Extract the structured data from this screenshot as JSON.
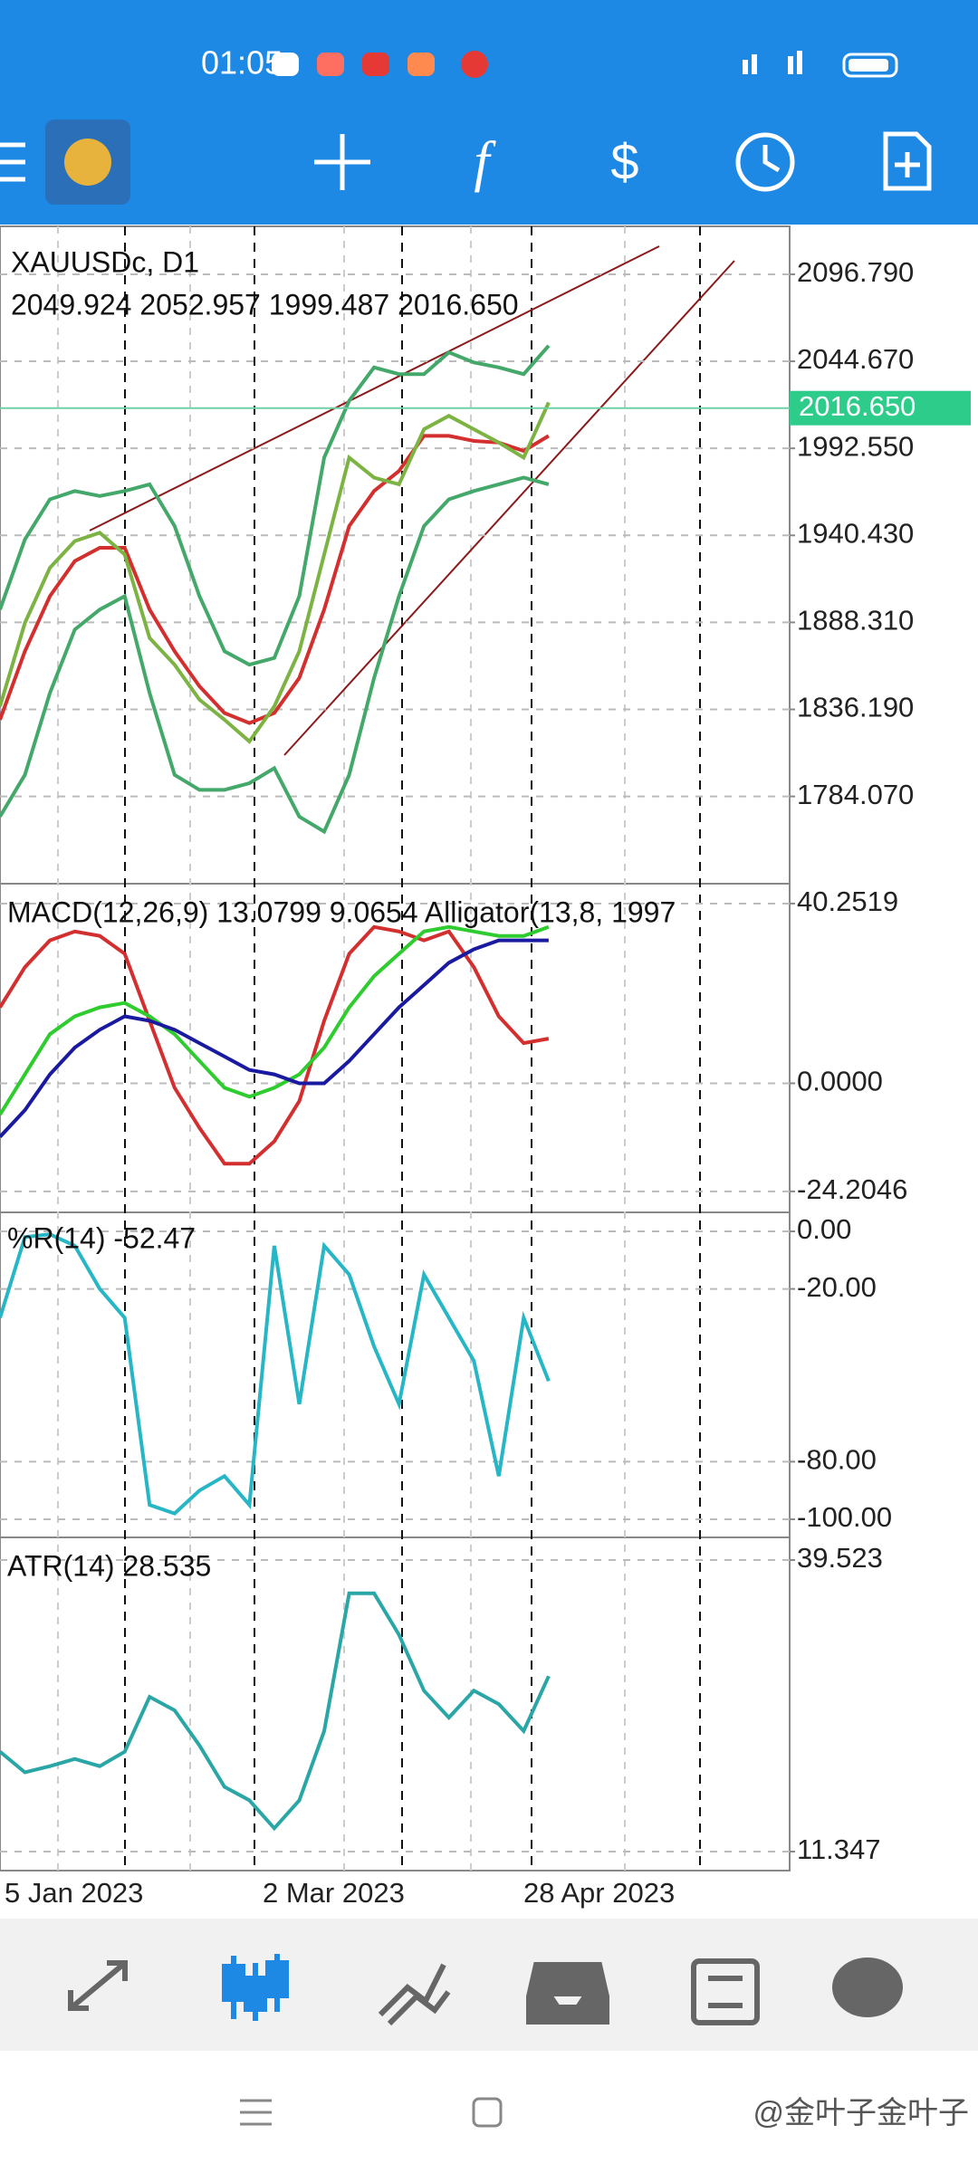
{
  "status_bar": {
    "time": "01:05"
  },
  "chart_data": [
    {
      "type": "line",
      "title": "XAUUSDc, D1",
      "subtitle": "2049.924 2052.957 1999.487 2016.650",
      "current_price": {
        "value": 2016.65,
        "label": "2016.650"
      },
      "ylim": [
        1731.8,
        2125.5
      ],
      "yticks": [
        {
          "value": 2096.79,
          "label": "2096.790"
        },
        {
          "value": 2044.67,
          "label": "2044.670"
        },
        {
          "value": 1992.55,
          "label": "1992.550"
        },
        {
          "value": 1940.43,
          "label": "1940.430"
        },
        {
          "value": 1888.31,
          "label": "1888.310"
        },
        {
          "value": 1836.19,
          "label": "1836.190"
        },
        {
          "value": 1784.07,
          "label": "1784.070"
        }
      ],
      "series": [
        {
          "color": "#43a86a",
          "values": [
            1896,
            1938,
            1962,
            1967,
            1964,
            1967,
            1971,
            1946,
            1904,
            1871,
            1863,
            1867,
            1904,
            1987,
            2021,
            2041,
            2037,
            2037,
            2050,
            2044,
            2041,
            2037,
            2054
          ]
        },
        {
          "color": "#43a86a",
          "values": [
            1772,
            1797,
            1846,
            1884,
            1896,
            1904,
            1846,
            1797,
            1788,
            1788,
            1792,
            1801,
            1772,
            1763,
            1797,
            1855,
            1904,
            1946,
            1962,
            1967,
            1971,
            1975,
            1971
          ]
        },
        {
          "color": "#d32f2f",
          "values": [
            1830,
            1871,
            1904,
            1925,
            1933,
            1933,
            1896,
            1871,
            1850,
            1834,
            1828,
            1834,
            1855,
            1896,
            1946,
            1967,
            1979,
            2000,
            2000,
            1997,
            1996,
            1991,
            2000
          ]
        },
        {
          "color": "#7cb342",
          "values": [
            1838,
            1888,
            1921,
            1937,
            1942,
            1929,
            1879,
            1863,
            1842,
            1830,
            1817,
            1838,
            1871,
            1929,
            1987,
            1975,
            1971,
            2004,
            2012,
            2004,
            1996,
            1987,
            2020
          ]
        }
      ]
    },
    {
      "type": "line",
      "title": "MACD(12,26,9) 13.0799 9.0654 Alligator(13,8, 1997",
      "ylim": [
        -28.9,
        44.7
      ],
      "yticks": [
        40.2519,
        {
          "value": 0,
          "label": "0.0000"
        },
        -24.2046
      ],
      "series": [
        {
          "color": "#d32f2f",
          "values": [
            17,
            26,
            32,
            34,
            33,
            29,
            14,
            -1,
            -10,
            -18,
            -18,
            -13,
            -4,
            14,
            29,
            35,
            34,
            32,
            34,
            26,
            15,
            9,
            10
          ]
        },
        {
          "color": "#2ecc2e",
          "values": [
            -7,
            2,
            11,
            15,
            17,
            18,
            15,
            11,
            5,
            -1,
            -3,
            -1,
            2,
            8,
            17,
            24,
            29,
            34,
            35,
            34,
            33,
            33,
            35
          ]
        },
        {
          "color": "#1a1aa0",
          "values": [
            -12,
            -6,
            2,
            8,
            12,
            15,
            14,
            12,
            9,
            6,
            3,
            2,
            0,
            0,
            5,
            11,
            17,
            22,
            27,
            30,
            32,
            32,
            32
          ]
        }
      ]
    },
    {
      "type": "line",
      "title": "%R(14) -52.47",
      "ylim": [
        -106.3,
        6.6
      ],
      "yticks": [
        {
          "value": 0,
          "label": "0.00"
        },
        {
          "value": -20,
          "label": "-20.00"
        },
        {
          "value": -80,
          "label": "-80.00"
        },
        {
          "value": -100,
          "label": "-100.00"
        }
      ],
      "series": [
        {
          "color": "#26b6c6",
          "values": [
            -30,
            -2,
            -1,
            -5,
            -20,
            -30,
            -95,
            -98,
            -90,
            -85,
            -95,
            -5,
            -60,
            -5,
            -15,
            -40,
            -60,
            -15,
            -30,
            -45,
            -85,
            -30,
            -52
          ]
        }
      ]
    },
    {
      "type": "line",
      "title": "ATR(14) 28.535",
      "ylim": [
        9.51,
        41.71
      ],
      "yticks": [
        39.523,
        11.347
      ],
      "series": [
        {
          "color": "#2aa6a6",
          "values": [
            21,
            19,
            19.6,
            20.3,
            19.6,
            21,
            26.3,
            25,
            21.6,
            17.6,
            16.3,
            13.6,
            16.3,
            23,
            36.3,
            36.3,
            32.3,
            26.9,
            24.3,
            26.9,
            25.6,
            23,
            28.3
          ]
        }
      ]
    }
  ],
  "date_axis": [
    "5 Jan 2023",
    "2 Mar 2023",
    "28 Apr 2023"
  ],
  "watermark": "@金叶子金叶子"
}
